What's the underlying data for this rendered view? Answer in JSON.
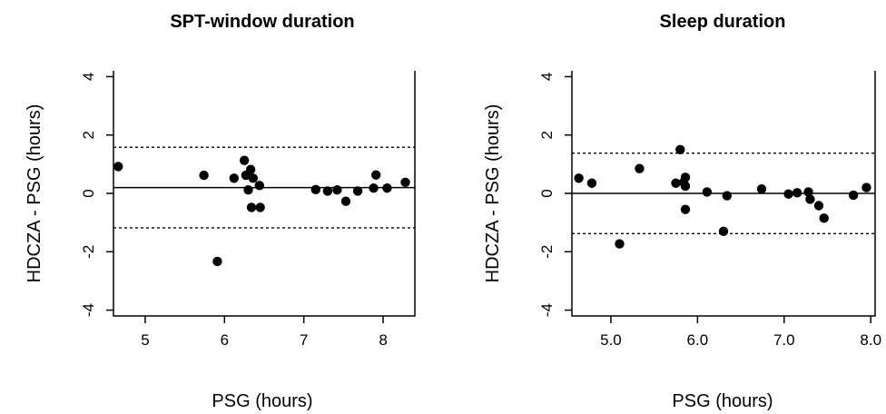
{
  "chart_data": [
    {
      "type": "scatter",
      "title": "SPT-window duration",
      "xlabel": "PSG (hours)",
      "ylabel": "HDCZA  - PSG (hours)",
      "xlim": [
        4.6,
        8.4
      ],
      "ylim": [
        -4.2,
        4.2
      ],
      "xticks": [
        5,
        6,
        7,
        8
      ],
      "xtick_labels": [
        "5",
        "6",
        "7",
        "8"
      ],
      "yticks": [
        -4,
        -2,
        0,
        2,
        4
      ],
      "ytick_labels": [
        "-4",
        "-2",
        "0",
        "2",
        "4"
      ],
      "mean_line": 0.2,
      "limits_of_agreement": [
        -1.18,
        1.58
      ],
      "grid": false,
      "points": [
        {
          "x": 4.66,
          "y": 0.92
        },
        {
          "x": 5.74,
          "y": 0.62
        },
        {
          "x": 5.91,
          "y": -2.33
        },
        {
          "x": 6.12,
          "y": 0.52
        },
        {
          "x": 6.25,
          "y": 1.13
        },
        {
          "x": 6.27,
          "y": 0.62
        },
        {
          "x": 6.3,
          "y": 0.12
        },
        {
          "x": 6.33,
          "y": 0.82
        },
        {
          "x": 6.34,
          "y": -0.48
        },
        {
          "x": 6.36,
          "y": 0.52
        },
        {
          "x": 6.44,
          "y": 0.27
        },
        {
          "x": 6.45,
          "y": -0.48
        },
        {
          "x": 7.15,
          "y": 0.13
        },
        {
          "x": 7.3,
          "y": 0.08
        },
        {
          "x": 7.42,
          "y": 0.12
        },
        {
          "x": 7.53,
          "y": -0.27
        },
        {
          "x": 7.68,
          "y": 0.08
        },
        {
          "x": 7.88,
          "y": 0.18
        },
        {
          "x": 7.91,
          "y": 0.63
        },
        {
          "x": 8.05,
          "y": 0.18
        },
        {
          "x": 8.28,
          "y": 0.38
        }
      ]
    },
    {
      "type": "scatter",
      "title": "Sleep duration",
      "xlabel": "PSG (hours)",
      "ylabel": "HDCZA  - PSG (hours)",
      "xlim": [
        4.55,
        8.05
      ],
      "ylim": [
        -4.2,
        4.2
      ],
      "xticks": [
        5.0,
        6.0,
        7.0,
        8.0
      ],
      "xtick_labels": [
        "5.0",
        "6.0",
        "7.0",
        "8.0"
      ],
      "yticks": [
        -4,
        -2,
        0,
        2,
        4
      ],
      "ytick_labels": [
        "-4",
        "-2",
        "0",
        "2",
        "4"
      ],
      "mean_line": 0.0,
      "limits_of_agreement": [
        -1.38,
        1.38
      ],
      "grid": false,
      "points": [
        {
          "x": 4.63,
          "y": 0.52
        },
        {
          "x": 4.78,
          "y": 0.35
        },
        {
          "x": 5.1,
          "y": -1.73
        },
        {
          "x": 5.33,
          "y": 0.85
        },
        {
          "x": 5.75,
          "y": 0.35
        },
        {
          "x": 5.8,
          "y": 1.5
        },
        {
          "x": 5.84,
          "y": 0.38
        },
        {
          "x": 5.86,
          "y": 0.55
        },
        {
          "x": 5.86,
          "y": 0.25
        },
        {
          "x": 5.86,
          "y": -0.55
        },
        {
          "x": 6.11,
          "y": 0.05
        },
        {
          "x": 6.3,
          "y": -1.3
        },
        {
          "x": 6.34,
          "y": -0.08
        },
        {
          "x": 6.74,
          "y": 0.15
        },
        {
          "x": 7.05,
          "y": -0.02
        },
        {
          "x": 7.15,
          "y": 0.02
        },
        {
          "x": 7.28,
          "y": 0.05
        },
        {
          "x": 7.3,
          "y": -0.2
        },
        {
          "x": 7.4,
          "y": -0.42
        },
        {
          "x": 7.46,
          "y": -0.85
        },
        {
          "x": 7.8,
          "y": -0.06
        },
        {
          "x": 7.95,
          "y": 0.2
        }
      ]
    }
  ]
}
